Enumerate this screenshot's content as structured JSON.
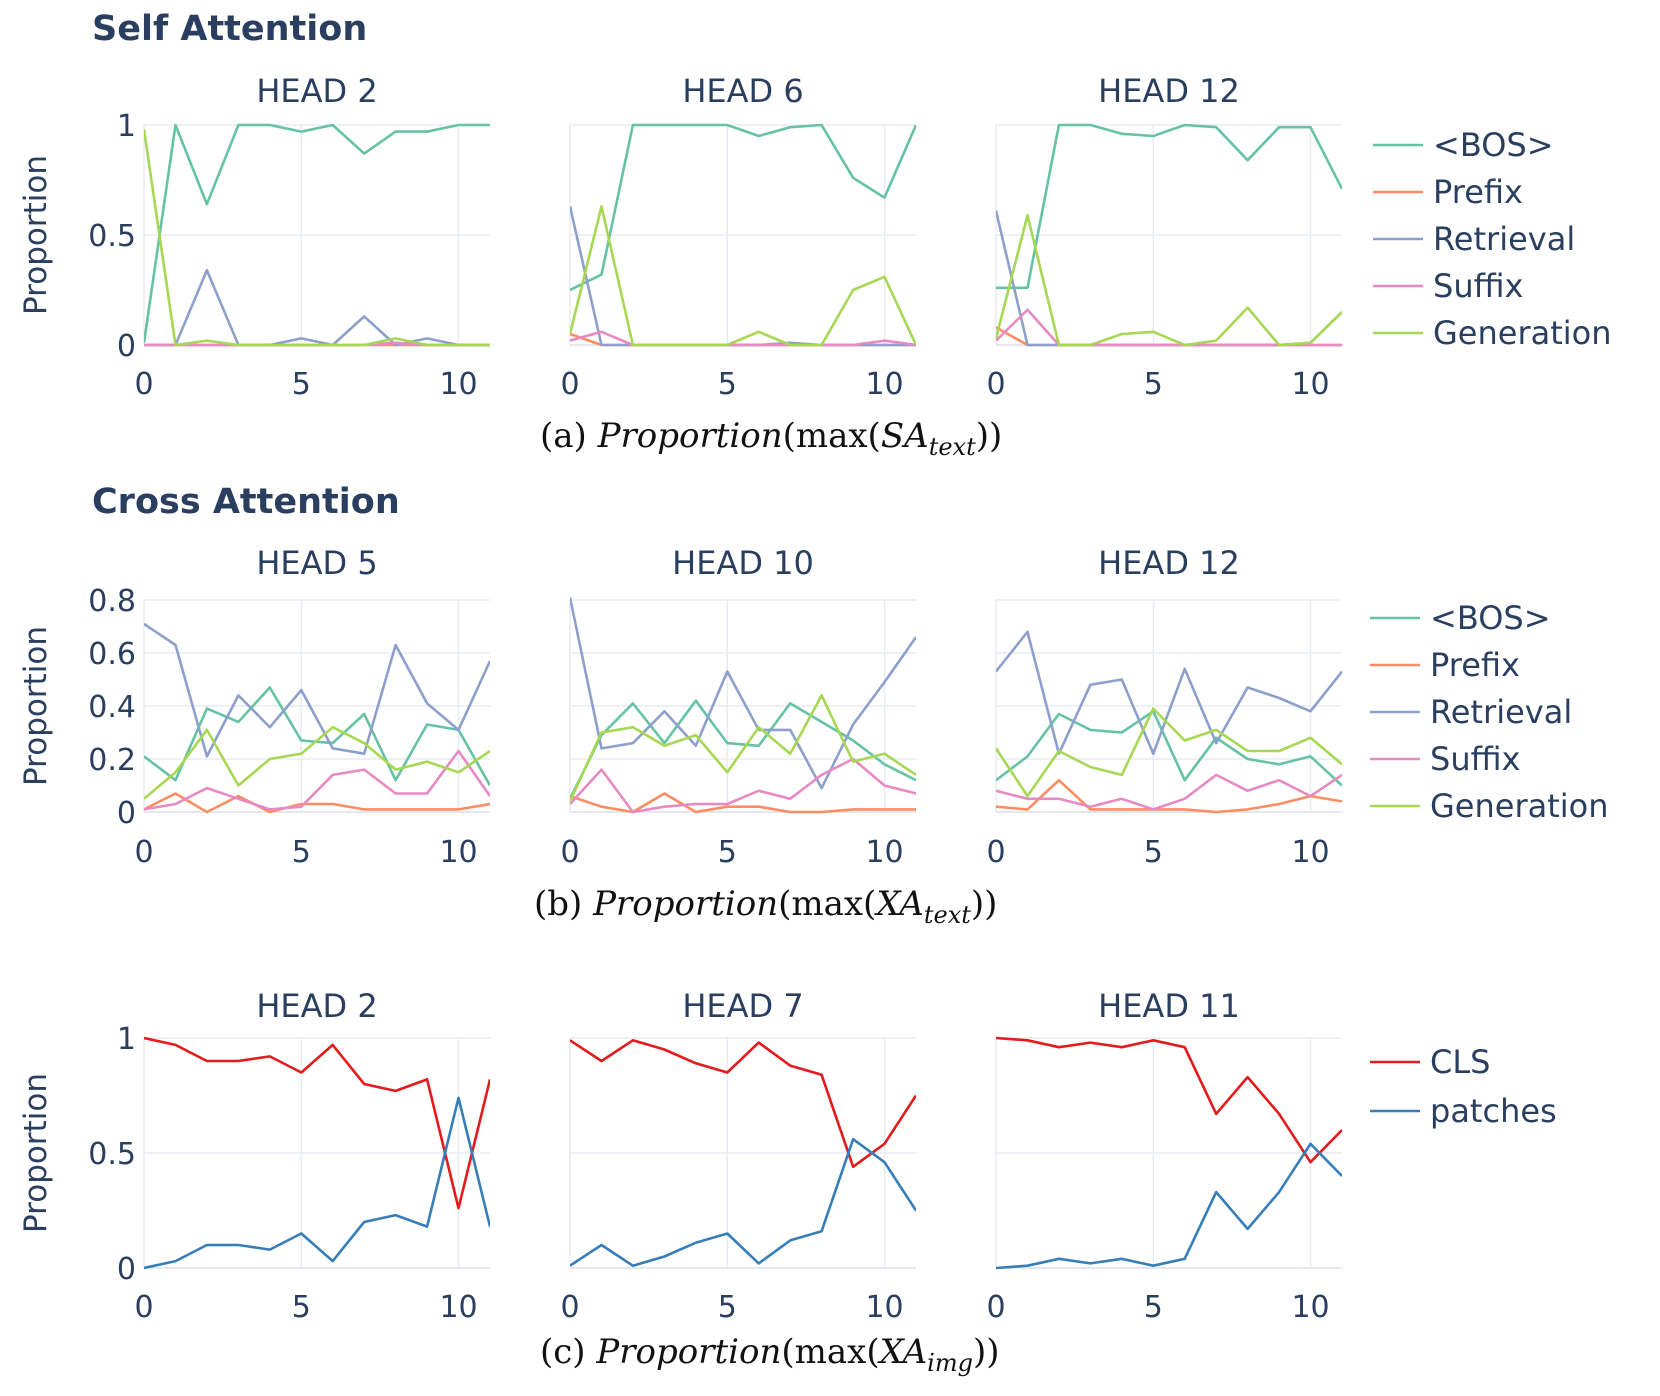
{
  "figure": {
    "sections": [
      {
        "title": "Self Attention"
      },
      {
        "title": "Cross Attention"
      }
    ],
    "captions": [
      {
        "prefix": "(a) ",
        "func": "Proportion",
        "open": "(max(",
        "base": "SA",
        "sub": "text",
        "close": "))"
      },
      {
        "prefix": "(b) ",
        "func": "Proportion",
        "open": "(max(",
        "base": "XA",
        "sub": "text",
        "close": "))"
      },
      {
        "prefix": "(c) ",
        "func": "Proportion",
        "open": "(max(",
        "base": "XA",
        "sub": "img",
        "close": "))"
      }
    ],
    "ylabel": "Proportion",
    "legends": [
      {
        "items": [
          {
            "label": "<BOS>",
            "color": "#66c2a5"
          },
          {
            "label": "Prefix",
            "color": "#fc8d62"
          },
          {
            "label": "Retrieval",
            "color": "#8da0cb"
          },
          {
            "label": "Suffix",
            "color": "#e78ac3"
          },
          {
            "label": "Generation",
            "color": "#a6d854"
          }
        ]
      },
      {
        "items": [
          {
            "label": "<BOS>",
            "color": "#66c2a5"
          },
          {
            "label": "Prefix",
            "color": "#fc8d62"
          },
          {
            "label": "Retrieval",
            "color": "#8da0cb"
          },
          {
            "label": "Suffix",
            "color": "#e78ac3"
          },
          {
            "label": "Generation",
            "color": "#a6d854"
          }
        ]
      },
      {
        "items": [
          {
            "label": "CLS",
            "color": "#e41a1c"
          },
          {
            "label": "patches",
            "color": "#377eb8"
          }
        ]
      }
    ]
  },
  "chart_data": [
    {
      "type": "line",
      "row": 0,
      "col": 0,
      "title": "HEAD 2",
      "xlim": [
        0,
        11
      ],
      "ylim": [
        0,
        1
      ],
      "xticks": [
        0,
        5,
        10
      ],
      "yticks": [
        0,
        0.5,
        1
      ],
      "ytick_labels": [
        "0",
        "0.5",
        "1"
      ],
      "x": [
        0,
        1,
        2,
        3,
        4,
        5,
        6,
        7,
        8,
        9,
        10,
        11
      ],
      "series": [
        {
          "name": "<BOS>",
          "color": "#66c2a5",
          "values": [
            0.01,
            1.0,
            0.64,
            1.0,
            1.0,
            0.97,
            1.0,
            0.87,
            0.97,
            0.97,
            1.0,
            1.0
          ]
        },
        {
          "name": "Prefix",
          "color": "#fc8d62",
          "values": [
            0,
            0,
            0,
            0,
            0,
            0,
            0,
            0,
            0,
            0,
            0,
            0
          ]
        },
        {
          "name": "Retrieval",
          "color": "#8da0cb",
          "values": [
            0,
            0,
            0.34,
            0,
            0,
            0.03,
            0,
            0.13,
            0,
            0.03,
            0,
            0
          ]
        },
        {
          "name": "Suffix",
          "color": "#e78ac3",
          "values": [
            0,
            0,
            0,
            0,
            0,
            0,
            0,
            0,
            0.01,
            0,
            0,
            0
          ]
        },
        {
          "name": "Generation",
          "color": "#a6d854",
          "values": [
            0.98,
            0,
            0.02,
            0,
            0,
            0,
            0,
            0,
            0.03,
            0,
            0,
            0
          ]
        }
      ]
    },
    {
      "type": "line",
      "row": 0,
      "col": 1,
      "title": "HEAD 6",
      "xlim": [
        0,
        11
      ],
      "ylim": [
        0,
        1
      ],
      "xticks": [
        0,
        5,
        10
      ],
      "yticks": [
        0,
        0.5,
        1
      ],
      "ytick_labels": [],
      "x": [
        0,
        1,
        2,
        3,
        4,
        5,
        6,
        7,
        8,
        9,
        10,
        11
      ],
      "series": [
        {
          "name": "<BOS>",
          "color": "#66c2a5",
          "values": [
            0.25,
            0.32,
            1.0,
            1.0,
            1.0,
            1.0,
            0.95,
            0.99,
            1.0,
            0.76,
            0.67,
            1.0
          ]
        },
        {
          "name": "Prefix",
          "color": "#fc8d62",
          "values": [
            0.05,
            0,
            0,
            0,
            0,
            0,
            0,
            0,
            0,
            0,
            0,
            0
          ]
        },
        {
          "name": "Retrieval",
          "color": "#8da0cb",
          "values": [
            0.63,
            0,
            0,
            0,
            0,
            0,
            0,
            0.01,
            0,
            0,
            0,
            0
          ]
        },
        {
          "name": "Suffix",
          "color": "#e78ac3",
          "values": [
            0.02,
            0.06,
            0,
            0,
            0,
            0,
            0,
            0,
            0,
            0,
            0.02,
            0
          ]
        },
        {
          "name": "Generation",
          "color": "#a6d854",
          "values": [
            0.05,
            0.63,
            0,
            0,
            0,
            0,
            0.06,
            0,
            0,
            0.25,
            0.31,
            0
          ]
        }
      ]
    },
    {
      "type": "line",
      "row": 0,
      "col": 2,
      "title": "HEAD 12",
      "xlim": [
        0,
        11
      ],
      "ylim": [
        0,
        1
      ],
      "xticks": [
        0,
        5,
        10
      ],
      "yticks": [
        0,
        0.5,
        1
      ],
      "ytick_labels": [],
      "x": [
        0,
        1,
        2,
        3,
        4,
        5,
        6,
        7,
        8,
        9,
        10,
        11
      ],
      "series": [
        {
          "name": "<BOS>",
          "color": "#66c2a5",
          "values": [
            0.26,
            0.26,
            1.0,
            1.0,
            0.96,
            0.95,
            1.0,
            0.99,
            0.84,
            0.99,
            0.99,
            0.71
          ]
        },
        {
          "name": "Prefix",
          "color": "#fc8d62",
          "values": [
            0.08,
            0,
            0,
            0,
            0,
            0,
            0,
            0,
            0,
            0,
            0,
            0
          ]
        },
        {
          "name": "Retrieval",
          "color": "#8da0cb",
          "values": [
            0.61,
            0,
            0,
            0,
            0,
            0,
            0,
            0,
            0,
            0,
            0.01,
            0.15
          ]
        },
        {
          "name": "Suffix",
          "color": "#e78ac3",
          "values": [
            0.02,
            0.16,
            0,
            0,
            0,
            0,
            0,
            0,
            0,
            0,
            0,
            0
          ]
        },
        {
          "name": "Generation",
          "color": "#a6d854",
          "values": [
            0.03,
            0.59,
            0,
            0,
            0.05,
            0.06,
            0,
            0.02,
            0.17,
            0,
            0.01,
            0.15
          ]
        }
      ]
    },
    {
      "type": "line",
      "row": 1,
      "col": 0,
      "title": "HEAD 5",
      "xlim": [
        0,
        11
      ],
      "ylim": [
        0,
        0.8
      ],
      "xticks": [
        0,
        5,
        10
      ],
      "yticks": [
        0,
        0.2,
        0.4,
        0.6,
        0.8
      ],
      "ytick_labels": [
        "0",
        "0.2",
        "0.4",
        "0.6",
        "0.8"
      ],
      "x": [
        0,
        1,
        2,
        3,
        4,
        5,
        6,
        7,
        8,
        9,
        10,
        11
      ],
      "series": [
        {
          "name": "<BOS>",
          "color": "#66c2a5",
          "values": [
            0.21,
            0.12,
            0.39,
            0.34,
            0.47,
            0.27,
            0.26,
            0.37,
            0.12,
            0.33,
            0.31,
            0.1
          ]
        },
        {
          "name": "Prefix",
          "color": "#fc8d62",
          "values": [
            0.01,
            0.07,
            0,
            0.06,
            0,
            0.03,
            0.03,
            0.01,
            0.01,
            0.01,
            0.01,
            0.03
          ]
        },
        {
          "name": "Retrieval",
          "color": "#8da0cb",
          "values": [
            0.71,
            0.63,
            0.21,
            0.44,
            0.32,
            0.46,
            0.24,
            0.22,
            0.63,
            0.41,
            0.31,
            0.57
          ]
        },
        {
          "name": "Suffix",
          "color": "#e78ac3",
          "values": [
            0.01,
            0.03,
            0.09,
            0.05,
            0.01,
            0.02,
            0.14,
            0.16,
            0.07,
            0.07,
            0.23,
            0.06
          ]
        },
        {
          "name": "Generation",
          "color": "#a6d854",
          "values": [
            0.05,
            0.15,
            0.31,
            0.1,
            0.2,
            0.22,
            0.32,
            0.26,
            0.16,
            0.19,
            0.15,
            0.23
          ]
        }
      ]
    },
    {
      "type": "line",
      "row": 1,
      "col": 1,
      "title": "HEAD 10",
      "xlim": [
        0,
        11
      ],
      "ylim": [
        0,
        0.8
      ],
      "xticks": [
        0,
        5,
        10
      ],
      "yticks": [
        0,
        0.2,
        0.4,
        0.6,
        0.8
      ],
      "ytick_labels": [],
      "x": [
        0,
        1,
        2,
        3,
        4,
        5,
        6,
        7,
        8,
        9,
        10,
        11
      ],
      "series": [
        {
          "name": "<BOS>",
          "color": "#66c2a5",
          "values": [
            0.05,
            0.29,
            0.41,
            0.26,
            0.42,
            0.26,
            0.25,
            0.41,
            0.34,
            0.27,
            0.18,
            0.12
          ]
        },
        {
          "name": "Prefix",
          "color": "#fc8d62",
          "values": [
            0.06,
            0.02,
            0,
            0.07,
            0,
            0.02,
            0.02,
            0,
            0,
            0.01,
            0.01,
            0.01
          ]
        },
        {
          "name": "Retrieval",
          "color": "#8da0cb",
          "values": [
            0.81,
            0.24,
            0.26,
            0.38,
            0.25,
            0.53,
            0.31,
            0.31,
            0.09,
            0.33,
            0.49,
            0.66
          ]
        },
        {
          "name": "Suffix",
          "color": "#e78ac3",
          "values": [
            0.03,
            0.16,
            0,
            0.02,
            0.03,
            0.03,
            0.08,
            0.05,
            0.14,
            0.2,
            0.1,
            0.07
          ]
        },
        {
          "name": "Generation",
          "color": "#a6d854",
          "values": [
            0.04,
            0.3,
            0.32,
            0.25,
            0.29,
            0.15,
            0.32,
            0.22,
            0.44,
            0.19,
            0.22,
            0.14
          ]
        }
      ]
    },
    {
      "type": "line",
      "row": 1,
      "col": 2,
      "title": "HEAD 12",
      "xlim": [
        0,
        11
      ],
      "ylim": [
        0,
        0.8
      ],
      "xticks": [
        0,
        5,
        10
      ],
      "yticks": [
        0,
        0.2,
        0.4,
        0.6,
        0.8
      ],
      "ytick_labels": [],
      "x": [
        0,
        1,
        2,
        3,
        4,
        5,
        6,
        7,
        8,
        9,
        10,
        11
      ],
      "series": [
        {
          "name": "<BOS>",
          "color": "#66c2a5",
          "values": [
            0.12,
            0.21,
            0.37,
            0.31,
            0.3,
            0.38,
            0.12,
            0.28,
            0.2,
            0.18,
            0.21,
            0.1
          ]
        },
        {
          "name": "Prefix",
          "color": "#fc8d62",
          "values": [
            0.02,
            0.01,
            0.12,
            0.01,
            0.01,
            0.01,
            0.01,
            0,
            0.01,
            0.03,
            0.06,
            0.04
          ]
        },
        {
          "name": "Retrieval",
          "color": "#8da0cb",
          "values": [
            0.53,
            0.68,
            0.22,
            0.48,
            0.5,
            0.22,
            0.54,
            0.26,
            0.47,
            0.43,
            0.38,
            0.53
          ]
        },
        {
          "name": "Suffix",
          "color": "#e78ac3",
          "values": [
            0.08,
            0.05,
            0.05,
            0.02,
            0.05,
            0.01,
            0.05,
            0.14,
            0.08,
            0.12,
            0.06,
            0.14
          ]
        },
        {
          "name": "Generation",
          "color": "#a6d854",
          "values": [
            0.24,
            0.06,
            0.23,
            0.17,
            0.14,
            0.39,
            0.27,
            0.31,
            0.23,
            0.23,
            0.28,
            0.18
          ]
        }
      ]
    },
    {
      "type": "line",
      "row": 2,
      "col": 0,
      "title": "HEAD 2",
      "xlim": [
        0,
        11
      ],
      "ylim": [
        0,
        1
      ],
      "xticks": [
        0,
        5,
        10
      ],
      "yticks": [
        0,
        0.5,
        1
      ],
      "ytick_labels": [
        "0",
        "0.5",
        "1"
      ],
      "x": [
        0,
        1,
        2,
        3,
        4,
        5,
        6,
        7,
        8,
        9,
        10,
        11
      ],
      "series": [
        {
          "name": "CLS",
          "color": "#e41a1c",
          "values": [
            1.0,
            0.97,
            0.9,
            0.9,
            0.92,
            0.85,
            0.97,
            0.8,
            0.77,
            0.82,
            0.26,
            0.82
          ]
        },
        {
          "name": "patches",
          "color": "#377eb8",
          "values": [
            0,
            0.03,
            0.1,
            0.1,
            0.08,
            0.15,
            0.03,
            0.2,
            0.23,
            0.18,
            0.74,
            0.18
          ]
        }
      ]
    },
    {
      "type": "line",
      "row": 2,
      "col": 1,
      "title": "HEAD 7",
      "xlim": [
        0,
        11
      ],
      "ylim": [
        0,
        1
      ],
      "xticks": [
        0,
        5,
        10
      ],
      "yticks": [
        0,
        0.5,
        1
      ],
      "ytick_labels": [],
      "x": [
        0,
        1,
        2,
        3,
        4,
        5,
        6,
        7,
        8,
        9,
        10,
        11
      ],
      "series": [
        {
          "name": "CLS",
          "color": "#e41a1c",
          "values": [
            0.99,
            0.9,
            0.99,
            0.95,
            0.89,
            0.85,
            0.98,
            0.88,
            0.84,
            0.44,
            0.54,
            0.75
          ]
        },
        {
          "name": "patches",
          "color": "#377eb8",
          "values": [
            0.01,
            0.1,
            0.01,
            0.05,
            0.11,
            0.15,
            0.02,
            0.12,
            0.16,
            0.56,
            0.46,
            0.25
          ]
        }
      ]
    },
    {
      "type": "line",
      "row": 2,
      "col": 2,
      "title": "HEAD 11",
      "xlim": [
        0,
        11
      ],
      "ylim": [
        0,
        1
      ],
      "xticks": [
        0,
        5,
        10
      ],
      "yticks": [
        0,
        0.5,
        1
      ],
      "ytick_labels": [],
      "x": [
        0,
        1,
        2,
        3,
        4,
        5,
        6,
        7,
        8,
        9,
        10,
        11
      ],
      "series": [
        {
          "name": "CLS",
          "color": "#e41a1c",
          "values": [
            1.0,
            0.99,
            0.96,
            0.98,
            0.96,
            0.99,
            0.96,
            0.67,
            0.83,
            0.67,
            0.46,
            0.6
          ]
        },
        {
          "name": "patches",
          "color": "#377eb8",
          "values": [
            0,
            0.01,
            0.04,
            0.02,
            0.04,
            0.01,
            0.04,
            0.33,
            0.17,
            0.33,
            0.54,
            0.4
          ]
        }
      ]
    }
  ]
}
